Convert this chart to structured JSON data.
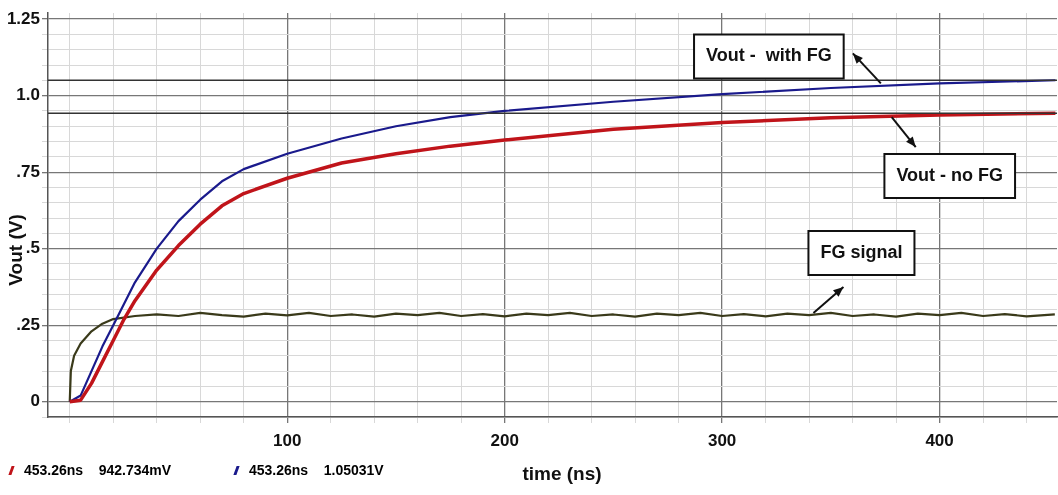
{
  "chart_data": {
    "type": "line",
    "ylabel": "Vout (V)",
    "xlabel": "time (ns)",
    "xlim": [
      -10,
      454
    ],
    "ylim": [
      -0.05,
      1.27
    ],
    "xticks": [
      {
        "value": 0,
        "label": null
      },
      {
        "value": 20,
        "label": null
      },
      {
        "value": 40,
        "label": null
      },
      {
        "value": 60,
        "label": null
      },
      {
        "value": 80,
        "label": null
      },
      100,
      {
        "value": 120,
        "label": null
      },
      {
        "value": 140,
        "label": null
      },
      {
        "value": 160,
        "label": null
      },
      {
        "value": 180,
        "label": null
      },
      200,
      {
        "value": 220,
        "label": null
      },
      {
        "value": 240,
        "label": null
      },
      {
        "value": 260,
        "label": null
      },
      {
        "value": 280,
        "label": null
      },
      300,
      {
        "value": 320,
        "label": null
      },
      {
        "value": 340,
        "label": null
      },
      {
        "value": 360,
        "label": null
      },
      {
        "value": 380,
        "label": null
      },
      400,
      {
        "value": 420,
        "label": null
      },
      {
        "value": 440,
        "label": null
      }
    ],
    "yticks": [
      {
        "value": -0.05,
        "label": null
      },
      0,
      {
        "value": 0.05,
        "label": null
      },
      {
        "value": 0.1,
        "label": null
      },
      {
        "value": 0.15,
        "label": null
      },
      {
        "value": 0.2,
        "label": null
      },
      {
        "value": 0.25,
        "label": ".25"
      },
      {
        "value": 0.3,
        "label": null
      },
      {
        "value": 0.35,
        "label": null
      },
      {
        "value": 0.4,
        "label": null
      },
      {
        "value": 0.45,
        "label": null
      },
      {
        "value": 0.5,
        "label": ".5"
      },
      {
        "value": 0.55,
        "label": null
      },
      {
        "value": 0.6,
        "label": null
      },
      {
        "value": 0.65,
        "label": null
      },
      {
        "value": 0.7,
        "label": null
      },
      {
        "value": 0.75,
        "label": ".75"
      },
      {
        "value": 0.8,
        "label": null
      },
      {
        "value": 0.85,
        "label": null
      },
      {
        "value": 0.9,
        "label": null
      },
      {
        "value": 0.95,
        "label": null
      },
      {
        "value": 1.0,
        "label": "1.0"
      },
      {
        "value": 1.05,
        "label": null
      },
      {
        "value": 1.1,
        "label": null
      },
      {
        "value": 1.15,
        "label": null
      },
      {
        "value": 1.2,
        "label": null
      },
      {
        "value": 1.25,
        "label": "1.25"
      }
    ],
    "grid": true,
    "legend": false,
    "marker": "none",
    "line_style": "solid",
    "series": [
      {
        "color": "#c0141a",
        "x": [
          0,
          5,
          10,
          15,
          20,
          25,
          30,
          40,
          50,
          60,
          70,
          80,
          100,
          125,
          150,
          175,
          200,
          250,
          300,
          350,
          400,
          453.26
        ],
        "values": [
          0,
          0.005,
          0.06,
          0.13,
          0.2,
          0.27,
          0.33,
          0.43,
          0.51,
          0.58,
          0.64,
          0.68,
          0.73,
          0.78,
          0.81,
          0.835,
          0.855,
          0.89,
          0.912,
          0.928,
          0.937,
          0.942734
        ]
      },
      {
        "color": "#1a1a8c",
        "x": [
          0,
          5,
          10,
          15,
          20,
          25,
          30,
          40,
          50,
          60,
          70,
          80,
          100,
          125,
          150,
          175,
          200,
          250,
          300,
          350,
          400,
          453.26
        ],
        "values": [
          0,
          0.02,
          0.1,
          0.18,
          0.25,
          0.32,
          0.39,
          0.5,
          0.59,
          0.66,
          0.72,
          0.76,
          0.81,
          0.86,
          0.9,
          0.93,
          0.95,
          0.98,
          1.005,
          1.025,
          1.04,
          1.05031
        ]
      },
      {
        "color": "#3a3a1a",
        "x": [
          0,
          0.5,
          2,
          5,
          10,
          15,
          20,
          30,
          40,
          50,
          60,
          70,
          80,
          90,
          100,
          110,
          120,
          130,
          140,
          150,
          160,
          170,
          180,
          190,
          200,
          210,
          220,
          230,
          240,
          250,
          260,
          270,
          280,
          290,
          300,
          310,
          320,
          330,
          340,
          350,
          360,
          370,
          380,
          390,
          400,
          410,
          420,
          430,
          440,
          453
        ],
        "values": [
          0,
          0.1,
          0.15,
          0.19,
          0.23,
          0.255,
          0.27,
          0.28,
          0.285,
          0.28,
          0.29,
          0.283,
          0.278,
          0.288,
          0.282,
          0.29,
          0.28,
          0.285,
          0.278,
          0.288,
          0.283,
          0.29,
          0.28,
          0.286,
          0.279,
          0.288,
          0.283,
          0.29,
          0.28,
          0.285,
          0.278,
          0.288,
          0.283,
          0.29,
          0.28,
          0.286,
          0.279,
          0.288,
          0.283,
          0.29,
          0.28,
          0.285,
          0.278,
          0.288,
          0.283,
          0.29,
          0.28,
          0.286,
          0.279,
          0.285
        ]
      }
    ],
    "ref_lines": [
      {
        "axis": "y",
        "value": 1.05031,
        "color": "#333333"
      },
      {
        "axis": "y",
        "value": 0.942734,
        "color": "#333333"
      }
    ],
    "annotations": [
      {
        "text": "Vout -  with FG",
        "x": 373,
        "y": 1.04
      },
      {
        "text": "Vout - no FG",
        "x": 378,
        "y": 0.93
      },
      {
        "text": "FG signal",
        "x": 342,
        "y": 0.29
      },
      "453.26ns    942.734mV",
      "453.26ns    1.05031V"
    ]
  }
}
